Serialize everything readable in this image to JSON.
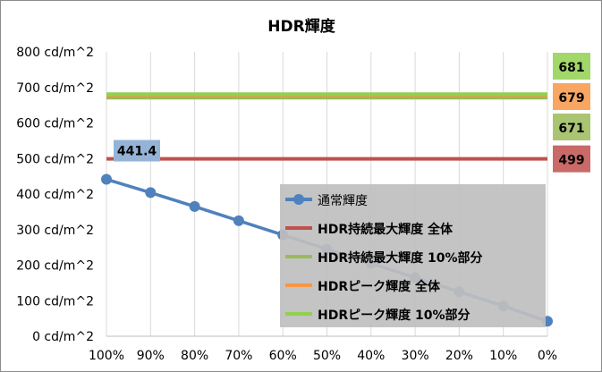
{
  "chart_data": {
    "type": "line",
    "title": "HDR輝度",
    "x": [
      "100%",
      "90%",
      "80%",
      "70%",
      "60%",
      "50%",
      "40%",
      "30%",
      "20%",
      "10%",
      "0%"
    ],
    "y_ticks": [
      "0 cd/m^2",
      "100 cd/m^2",
      "200 cd/m^2",
      "300 cd/m^2",
      "400 cd/m^2",
      "500 cd/m^2",
      "600 cd/m^2",
      "700 cd/m^2",
      "800 cd/m^2"
    ],
    "ylim": [
      0,
      800
    ],
    "grid": "vertical",
    "legend_position": "bottom-right",
    "series": [
      {
        "name": "通常輝度",
        "color": "#4f81bd",
        "marker": "circle",
        "values": [
          441.4,
          404,
          365,
          325,
          285,
          245,
          205,
          165,
          125,
          85,
          42
        ],
        "data_label": "441.4"
      },
      {
        "name": "HDR持続最大輝度 全体",
        "color": "#c0504d",
        "constant": 499,
        "data_label": "499"
      },
      {
        "name": "HDR持続最大輝度 10%部分",
        "color": "#9bbb59",
        "constant": 671,
        "data_label": "671"
      },
      {
        "name": "HDRピーク輝度 全体",
        "color": "#f79646",
        "constant": 679,
        "data_label": "679"
      },
      {
        "name": "HDRピーク輝度 10%部分",
        "color": "#92d050",
        "constant": 681,
        "data_label": "681"
      }
    ]
  }
}
